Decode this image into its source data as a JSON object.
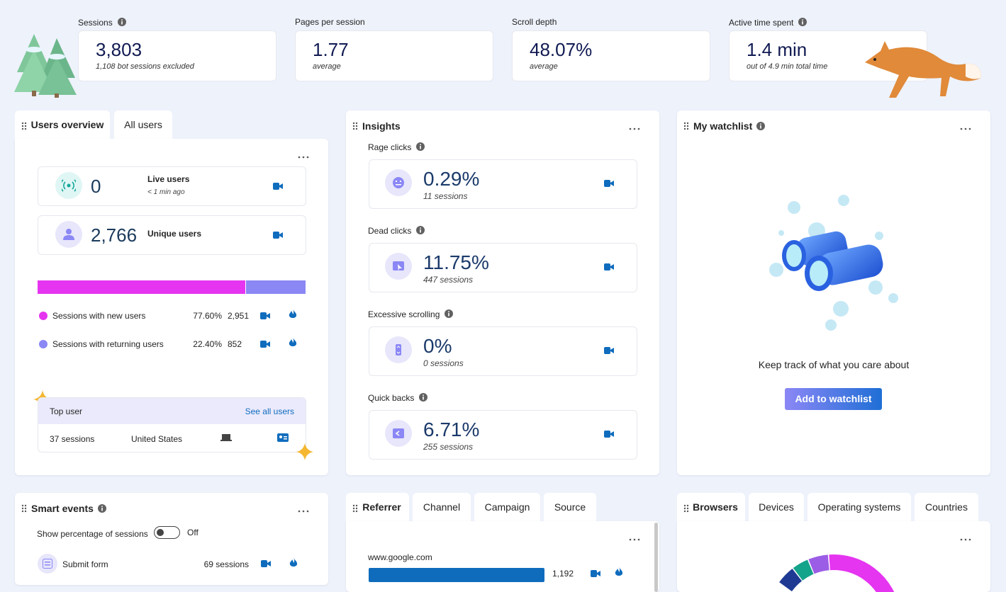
{
  "kpis": [
    {
      "label": "Sessions",
      "value": "3,803",
      "note": "1,108 bot sessions excluded",
      "info": true
    },
    {
      "label": "Pages per session",
      "value": "1.77",
      "note": "average",
      "info": false
    },
    {
      "label": "Scroll depth",
      "value": "48.07%",
      "note": "average",
      "info": false
    },
    {
      "label": "Active time spent",
      "value": "1.4 min",
      "note": "out of 4.9 min total time",
      "info": true
    }
  ],
  "users_overview": {
    "tabs": [
      "Users overview",
      "All users"
    ],
    "live": {
      "value": "0",
      "label": "Live users",
      "note": "< 1 min ago"
    },
    "unique": {
      "value": "2,766",
      "label": "Unique users"
    },
    "segments": [
      {
        "name": "Sessions with new users",
        "share": 77.6,
        "share_label": "77.60%",
        "sessions": "2,951",
        "color": "#e535f0"
      },
      {
        "name": "Sessions with returning users",
        "share": 22.4,
        "share_label": "22.40%",
        "sessions": "852",
        "color": "#8b87f5"
      }
    ],
    "top_user": {
      "title": "Top user",
      "link": "See all users",
      "sessions": "37 sessions",
      "country": "United States"
    }
  },
  "insights": {
    "title": "Insights",
    "items": [
      {
        "label": "Rage clicks",
        "value": "0.29%",
        "note": "11 sessions"
      },
      {
        "label": "Dead clicks",
        "value": "11.75%",
        "note": "447 sessions"
      },
      {
        "label": "Excessive scrolling",
        "value": "0%",
        "note": "0 sessions"
      },
      {
        "label": "Quick backs",
        "value": "6.71%",
        "note": "255 sessions"
      }
    ]
  },
  "watchlist": {
    "title": "My watchlist",
    "message": "Keep track of what you care about",
    "button": "Add to watchlist"
  },
  "smart_events": {
    "title": "Smart events",
    "toggle_label": "Show percentage of sessions",
    "toggle_state": "Off",
    "items": [
      {
        "label": "Submit form",
        "count": "69 sessions"
      }
    ]
  },
  "referrer": {
    "tabs": [
      "Referrer",
      "Channel",
      "Campaign",
      "Source"
    ],
    "items": [
      {
        "label": "www.google.com",
        "count": "1,192"
      }
    ]
  },
  "browsers": {
    "tabs": [
      "Browsers",
      "Devices",
      "Operating systems",
      "Countries"
    ]
  }
}
